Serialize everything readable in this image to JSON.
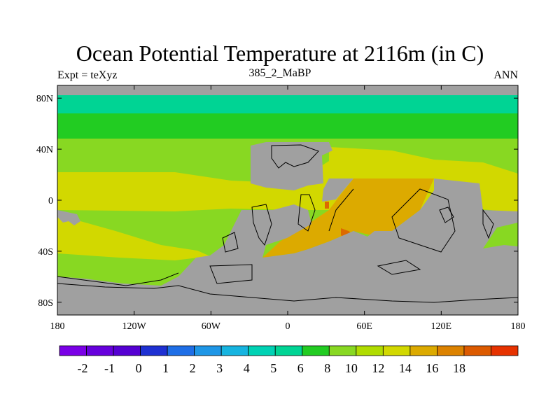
{
  "title": "Ocean Potential Temperature at 2116m (in C)",
  "subtitle_left": "Expt = teXyz",
  "subtitle_center": "385_2_MaBP",
  "subtitle_right": "ANN",
  "colors": {
    "land": "#a0a0a0",
    "t8": "#22cc22",
    "t6": "#00d494",
    "t10": "#88d822",
    "t12": "#d2d800",
    "t14": "#dcaa00",
    "t16": "#dc6a00",
    "coast": "#000000"
  },
  "map": {
    "x_ticks": [
      {
        "lon": -180,
        "label": "180"
      },
      {
        "lon": -120,
        "label": "120W"
      },
      {
        "lon": -60,
        "label": "60W"
      },
      {
        "lon": 0,
        "label": "0"
      },
      {
        "lon": 60,
        "label": "60E"
      },
      {
        "lon": 120,
        "label": "120E"
      },
      {
        "lon": 180,
        "label": "180"
      }
    ],
    "y_ticks": [
      {
        "lat": 80,
        "label": "80N"
      },
      {
        "lat": 40,
        "label": "40N"
      },
      {
        "lat": 0,
        "label": "0"
      },
      {
        "lat": -40,
        "label": "40S"
      },
      {
        "lat": -80,
        "label": "80S"
      }
    ]
  },
  "colorbar": {
    "colors": [
      "#7a00e6",
      "#6600dc",
      "#5500d2",
      "#1e30d2",
      "#1e6ee6",
      "#1e96e6",
      "#16b4e0",
      "#00d2b4",
      "#00d494",
      "#22cc22",
      "#88d822",
      "#b0dc00",
      "#d2d800",
      "#dcaa00",
      "#dc8200",
      "#dc5a00",
      "#e63200"
    ],
    "labels": [
      "-2",
      "-1",
      "0",
      "1",
      "2",
      "3",
      "4",
      "5",
      "6",
      "8",
      "10",
      "12",
      "14",
      "16",
      "18"
    ]
  }
}
